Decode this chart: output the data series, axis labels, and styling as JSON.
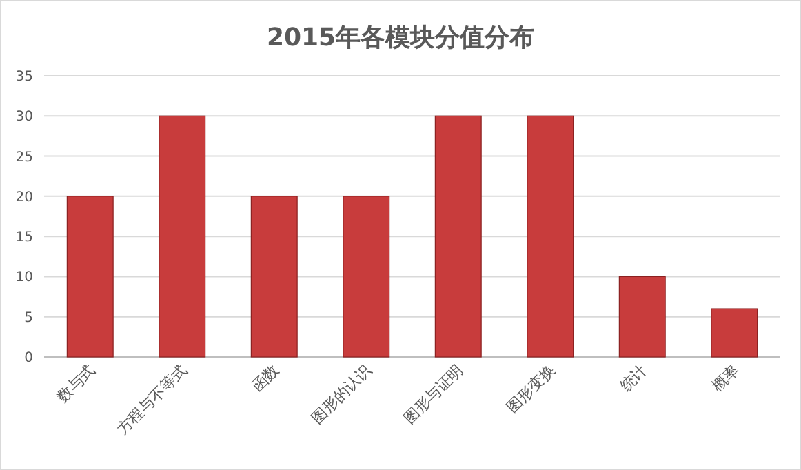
{
  "chart_data": {
    "type": "bar",
    "title": "2015年各模块分值分布",
    "categories": [
      "数与式",
      "方程与不等式",
      "函数",
      "图形的认识",
      "图形与证明",
      "图形变换",
      "统计",
      "概率"
    ],
    "values": [
      20,
      30,
      20,
      20,
      30,
      30,
      10,
      6
    ],
    "color": "#c83c3c",
    "ylim": [
      0,
      35
    ],
    "yticks": [
      0,
      5,
      10,
      15,
      20,
      25,
      30,
      35
    ],
    "grid": "y"
  }
}
